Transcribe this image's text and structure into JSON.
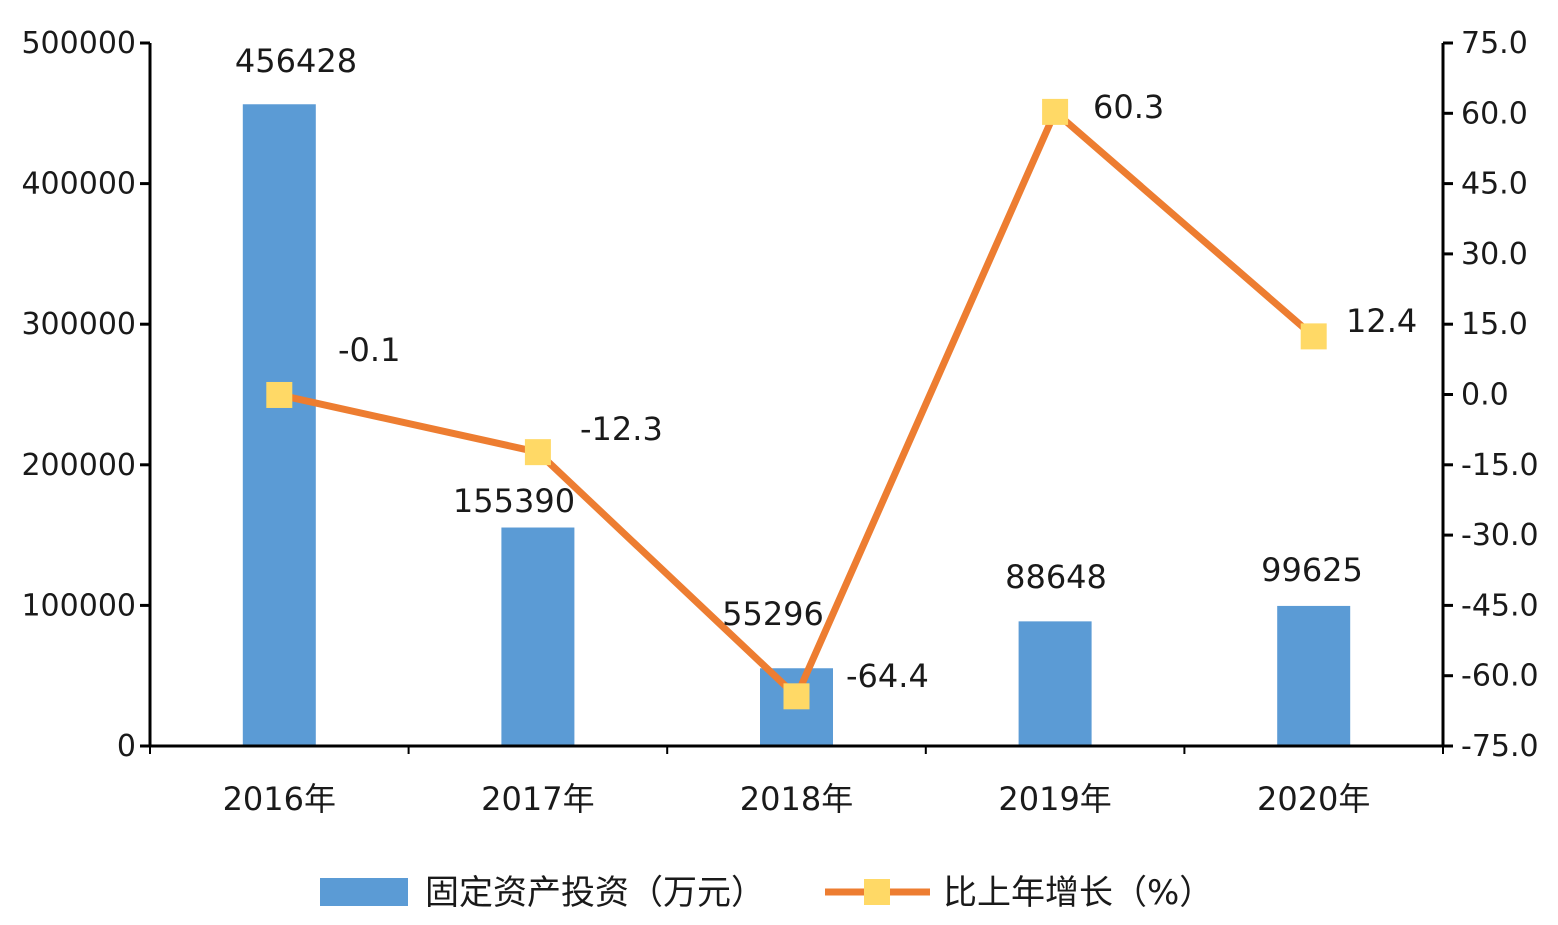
{
  "chart_data": {
    "type": "bar+line",
    "categories": [
      "2016年",
      "2017年",
      "2018年",
      "2019年",
      "2020年"
    ],
    "series": [
      {
        "name": "固定资产投资（万元）",
        "type": "bar",
        "axis": "left",
        "values": [
          456428,
          155390,
          55296,
          88648,
          99625
        ],
        "labels": [
          "456428",
          "155390",
          "55296",
          "88648",
          "99625"
        ],
        "color": "#5B9BD5"
      },
      {
        "name": "比上年增长（%）",
        "type": "line",
        "axis": "right",
        "values": [
          -0.1,
          -12.3,
          -64.4,
          60.3,
          12.4
        ],
        "labels": [
          "-0.1",
          "-12.3",
          "-64.4",
          "60.3",
          "12.4"
        ],
        "color": "#ED7D31",
        "marker_color": "#FFD966"
      }
    ],
    "y_left": {
      "min": 0,
      "max": 500000,
      "ticks": [
        "0",
        "100000",
        "200000",
        "300000",
        "400000",
        "500000"
      ]
    },
    "y_right": {
      "min": -75,
      "max": 75,
      "ticks": [
        "-75.0",
        "-60.0",
        "-45.0",
        "-30.0",
        "-15.0",
        "0.0",
        "15.0",
        "30.0",
        "45.0",
        "60.0",
        "75.0"
      ]
    },
    "grid": false,
    "legend_position": "bottom"
  }
}
